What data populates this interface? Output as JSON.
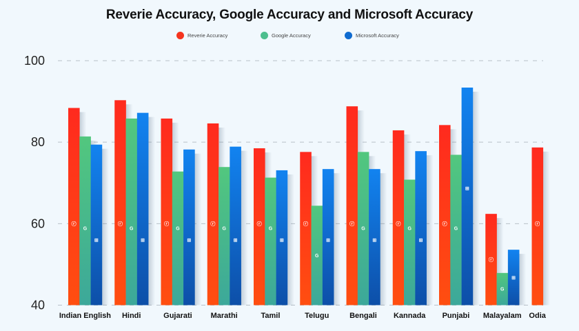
{
  "chart_data": {
    "type": "bar",
    "title": "Reverie Accuracy, Google Accuracy and Microsoft Accuracy",
    "xlabel": "",
    "ylabel": "",
    "ylim": [
      40,
      100
    ],
    "yticks": [
      40,
      60,
      80,
      100
    ],
    "grid": true,
    "legend_position": "top-center",
    "categories": [
      "Indian English",
      "Hindi",
      "Gujarati",
      "Marathi",
      "Tamil",
      "Telugu",
      "Bengali",
      "Kannada",
      "Punjabi",
      "Malayalam",
      "Odia"
    ],
    "series": [
      {
        "name": "Reverie Accuracy",
        "icon": "reverie-logo-icon",
        "color_top": "#FF2A1E",
        "color_bottom": "#FF4E10",
        "values": [
          88.4,
          90.3,
          85.8,
          84.6,
          78.5,
          77.6,
          88.8,
          82.9,
          84.2,
          62.4,
          78.7
        ]
      },
      {
        "name": "Google Accuracy",
        "icon": "google-logo-icon",
        "color_top": "#52C77E",
        "color_bottom": "#3CA89A",
        "values": [
          81.4,
          85.8,
          72.8,
          73.9,
          71.3,
          64.4,
          77.6,
          70.8,
          76.9,
          47.9,
          null
        ]
      },
      {
        "name": "Microsoft Accuracy",
        "icon": "windows-logo-icon",
        "color_top": "#1283F0",
        "color_bottom": "#0D4FA8",
        "values": [
          79.4,
          87.2,
          78.2,
          78.9,
          73.1,
          73.4,
          73.4,
          77.8,
          93.4,
          53.6,
          null
        ]
      }
    ]
  },
  "legend": {
    "items": [
      {
        "label": "Reverie Accuracy",
        "color": "#F5341E"
      },
      {
        "label": "Google Accuracy",
        "color": "#4DBE8E"
      },
      {
        "label": "Microsoft Accuracy",
        "color": "#0F6BD0"
      }
    ]
  },
  "background": "#F1F8FD"
}
